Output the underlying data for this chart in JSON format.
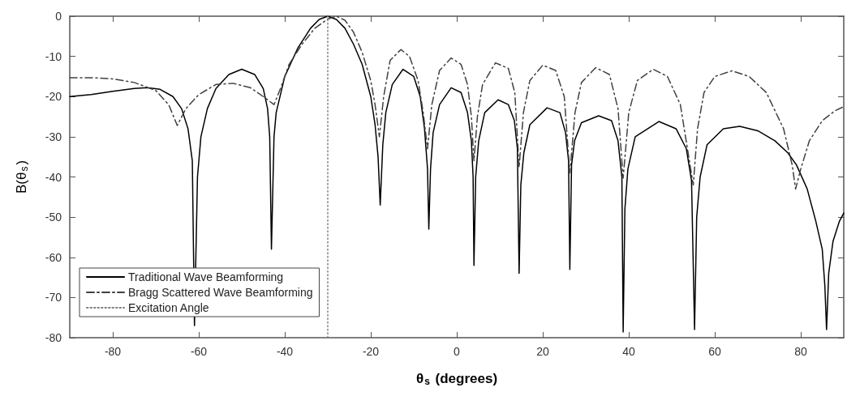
{
  "chart_data": {
    "type": "line",
    "xlabel": "θ$_{s}$ (degrees)",
    "ylabel": "B(θ$_{s}$)",
    "xlim": [
      -90,
      90
    ],
    "xticks": [
      -80,
      -60,
      -40,
      -20,
      0,
      20,
      40,
      60,
      80
    ],
    "ylim": [
      -80,
      0
    ],
    "yticks": [
      -80,
      -70,
      -60,
      -50,
      -40,
      -30,
      -20,
      -10,
      0
    ],
    "grid": false,
    "legend": "bottom left",
    "marker": "none",
    "series": [
      {
        "name": "Traditional Wave Beamforming",
        "color": "#000000",
        "line_style": "solid",
        "x": [
          -90,
          -85,
          -80,
          -75,
          -72,
          -69,
          -66,
          -64,
          -62.5,
          -61.5,
          -61,
          -60.3,
          -59.5,
          -58,
          -56,
          -53,
          -50,
          -47,
          -45,
          -44,
          -43.5,
          -43.1,
          -42.5,
          -42,
          -40,
          -37,
          -34,
          -32,
          -30,
          -28,
          -26,
          -24,
          -22,
          -20,
          -19,
          -18.3,
          -17.8,
          -17.2,
          -16.5,
          -15,
          -12.5,
          -10,
          -8.5,
          -7.5,
          -6.8,
          -6.5,
          -6.1,
          -5.5,
          -4,
          -1.3,
          1,
          2.5,
          3.4,
          3.8,
          4,
          4.4,
          5.1,
          6.5,
          9.6,
          12,
          13.4,
          14.1,
          14.5,
          14.9,
          15.6,
          17,
          21,
          24,
          25.3,
          26,
          26.3,
          26.7,
          27.4,
          29,
          33,
          36,
          37.5,
          38.4,
          38.7,
          39.1,
          39.8,
          41.5,
          47,
          51,
          53.4,
          54.6,
          55.3,
          55.8,
          56.6,
          58.2,
          62,
          65.8,
          70,
          74,
          77,
          79,
          81.5,
          83.5,
          85,
          85.6,
          86,
          86.5,
          87.5,
          89,
          90
        ],
        "values": [
          -20,
          -19.5,
          -18.7,
          -18,
          -17.8,
          -18.2,
          -20,
          -23,
          -28,
          -36,
          -77,
          -40,
          -30,
          -23,
          -18,
          -14.5,
          -13.2,
          -14.5,
          -18,
          -23,
          -30,
          -58,
          -30,
          -24,
          -15,
          -8,
          -3,
          -0.8,
          0,
          -0.8,
          -3,
          -7,
          -12,
          -20,
          -27,
          -35,
          -47,
          -32,
          -24,
          -17,
          -13.2,
          -15,
          -20,
          -28,
          -38,
          -53,
          -38,
          -29,
          -22,
          -17.8,
          -19,
          -24,
          -31,
          -40,
          -62,
          -40,
          -31,
          -24,
          -20.8,
          -22,
          -26,
          -33,
          -64,
          -42,
          -34,
          -27,
          -22.8,
          -24,
          -29,
          -36,
          -63,
          -37,
          -31,
          -26.5,
          -24.8,
          -26,
          -31,
          -40,
          -78.6,
          -48,
          -38,
          -30,
          -26.2,
          -28,
          -33,
          -41,
          -78,
          -50,
          -40,
          -32,
          -28,
          -27.4,
          -28.5,
          -31,
          -34,
          -37,
          -43,
          -51,
          -58,
          -67,
          -78,
          -64,
          -56,
          -51,
          -49
        ]
      },
      {
        "name": "Bragg Scattered Wave Beamforming",
        "color": "#404040",
        "line_style": "dashdot",
        "x": [
          -90,
          -85,
          -80,
          -75,
          -70,
          -67,
          -65,
          -63,
          -60,
          -56,
          -52,
          -48,
          -45,
          -42.5,
          -41,
          -39,
          -36,
          -33,
          -30,
          -28,
          -26,
          -24,
          -22,
          -20,
          -19,
          -18,
          -17,
          -15.5,
          -13,
          -11,
          -9,
          -7.8,
          -6.8,
          -5.8,
          -4,
          -1.3,
          1,
          2.5,
          3.4,
          4,
          4.8,
          6,
          9,
          12,
          13.5,
          14.5,
          15.5,
          17,
          20,
          23,
          25,
          26.3,
          27.5,
          29,
          32.3,
          35.5,
          37.5,
          38.7,
          40,
          42,
          45.7,
          49,
          52,
          55,
          56,
          57.5,
          60,
          64,
          68,
          72,
          76,
          78,
          78.8,
          80,
          82,
          85,
          88,
          90
        ],
        "values": [
          -15.3,
          -15.3,
          -15.6,
          -16.5,
          -18.5,
          -22,
          -27.2,
          -23,
          -19.5,
          -17,
          -16.7,
          -17.8,
          -20,
          -22,
          -18,
          -12,
          -7,
          -3,
          -0.7,
          0,
          -1,
          -4,
          -9,
          -16,
          -22,
          -30,
          -20,
          -11,
          -8.3,
          -10,
          -16,
          -24,
          -33,
          -22,
          -13.5,
          -10.4,
          -12,
          -17,
          -25,
          -36,
          -25,
          -17,
          -11.6,
          -13,
          -19,
          -37.6,
          -24,
          -16,
          -12.2,
          -13.5,
          -20,
          -39,
          -24,
          -16.5,
          -12.8,
          -14.5,
          -23,
          -40.3,
          -24,
          -16,
          -13.2,
          -15,
          -22,
          -42,
          -28,
          -19,
          -15,
          -13.6,
          -15,
          -19,
          -28,
          -37,
          -43,
          -38,
          -31,
          -26,
          -23.5,
          -22.5
        ]
      },
      {
        "name": "Excitation Angle",
        "color": "#808080",
        "line_style": "dotted",
        "x": [
          -30,
          -30
        ],
        "values": [
          -80,
          0
        ]
      }
    ]
  }
}
